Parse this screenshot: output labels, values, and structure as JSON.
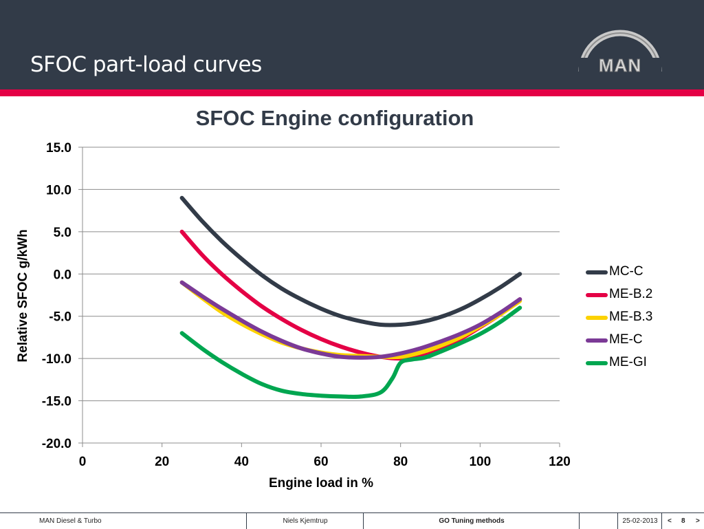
{
  "header": {
    "title": "SFOC part-load curves",
    "logo_text": "MAN",
    "colors": {
      "background": "#323b48",
      "accent": "#e40045"
    }
  },
  "chart_data": {
    "type": "line",
    "title": "SFOC Engine configuration",
    "xlabel": "Engine load in %",
    "ylabel": "Relative SFOC g/kWh",
    "xlim": [
      0,
      120
    ],
    "ylim": [
      -20,
      15
    ],
    "x_ticks": [
      "0",
      "20",
      "40",
      "60",
      "80",
      "100",
      "120"
    ],
    "y_ticks": [
      "15.0",
      "10.0",
      "5.0",
      "0.0",
      "-5.0",
      "-10.0",
      "-15.0",
      "-20.0"
    ],
    "grid": "horizontal",
    "legend_position": "right",
    "series": [
      {
        "name": "MC-C",
        "color": "#323b48",
        "points": [
          [
            25,
            9.0
          ],
          [
            30,
            6.3
          ],
          [
            35,
            3.9
          ],
          [
            40,
            1.8
          ],
          [
            45,
            -0.1
          ],
          [
            50,
            -1.7
          ],
          [
            55,
            -3.0
          ],
          [
            60,
            -4.1
          ],
          [
            65,
            -5.0
          ],
          [
            70,
            -5.6
          ],
          [
            75,
            -6.0
          ],
          [
            80,
            -6.0
          ],
          [
            85,
            -5.7
          ],
          [
            90,
            -5.1
          ],
          [
            95,
            -4.2
          ],
          [
            100,
            -3.0
          ],
          [
            105,
            -1.6
          ],
          [
            110,
            0.0
          ]
        ]
      },
      {
        "name": "ME-B.2",
        "color": "#e40045",
        "points": [
          [
            25,
            5.0
          ],
          [
            30,
            2.3
          ],
          [
            35,
            0.0
          ],
          [
            40,
            -2.0
          ],
          [
            45,
            -3.8
          ],
          [
            50,
            -5.3
          ],
          [
            55,
            -6.6
          ],
          [
            60,
            -7.7
          ],
          [
            65,
            -8.6
          ],
          [
            70,
            -9.3
          ],
          [
            75,
            -9.8
          ],
          [
            80,
            -10.0
          ],
          [
            85,
            -9.6
          ],
          [
            90,
            -8.8
          ],
          [
            95,
            -7.7
          ],
          [
            100,
            -6.3
          ],
          [
            105,
            -4.8
          ],
          [
            110,
            -3.0
          ]
        ]
      },
      {
        "name": "ME-B.3",
        "color": "#fcd200",
        "points": [
          [
            25,
            -1.0
          ],
          [
            30,
            -2.8
          ],
          [
            35,
            -4.5
          ],
          [
            40,
            -5.9
          ],
          [
            45,
            -7.1
          ],
          [
            50,
            -8.1
          ],
          [
            55,
            -8.8
          ],
          [
            60,
            -9.3
          ],
          [
            65,
            -9.6
          ],
          [
            70,
            -9.7
          ],
          [
            75,
            -9.8
          ],
          [
            80,
            -9.8
          ],
          [
            85,
            -9.3
          ],
          [
            90,
            -8.5
          ],
          [
            95,
            -7.5
          ],
          [
            100,
            -6.2
          ],
          [
            105,
            -4.8
          ],
          [
            110,
            -3.2
          ]
        ]
      },
      {
        "name": "ME-C",
        "color": "#7b3a96",
        "points": [
          [
            25,
            -1.0
          ],
          [
            30,
            -2.6
          ],
          [
            35,
            -4.1
          ],
          [
            40,
            -5.5
          ],
          [
            45,
            -6.8
          ],
          [
            50,
            -7.9
          ],
          [
            55,
            -8.8
          ],
          [
            60,
            -9.4
          ],
          [
            65,
            -9.8
          ],
          [
            70,
            -9.9
          ],
          [
            75,
            -9.8
          ],
          [
            80,
            -9.4
          ],
          [
            85,
            -8.8
          ],
          [
            90,
            -8.0
          ],
          [
            95,
            -7.1
          ],
          [
            100,
            -6.0
          ],
          [
            105,
            -4.6
          ],
          [
            110,
            -3.0
          ]
        ]
      },
      {
        "name": "ME-GI",
        "color": "#00a650",
        "points": [
          [
            25,
            -7.0
          ],
          [
            30,
            -8.8
          ],
          [
            35,
            -10.4
          ],
          [
            40,
            -11.8
          ],
          [
            45,
            -13.0
          ],
          [
            50,
            -13.8
          ],
          [
            55,
            -14.2
          ],
          [
            60,
            -14.4
          ],
          [
            65,
            -14.5
          ],
          [
            70,
            -14.5
          ],
          [
            75,
            -14.0
          ],
          [
            78,
            -12.3
          ],
          [
            80,
            -10.5
          ],
          [
            83,
            -10.1
          ],
          [
            86,
            -9.9
          ],
          [
            90,
            -9.2
          ],
          [
            95,
            -8.2
          ],
          [
            100,
            -7.1
          ],
          [
            105,
            -5.7
          ],
          [
            110,
            -4.0
          ]
        ]
      }
    ]
  },
  "footer": {
    "company": "MAN Diesel & Turbo",
    "author": "Niels Kjemtrup",
    "presentation": "GO Tuning methods",
    "date": "25-02-2013",
    "prev": "<",
    "page": "8",
    "next": ">"
  }
}
